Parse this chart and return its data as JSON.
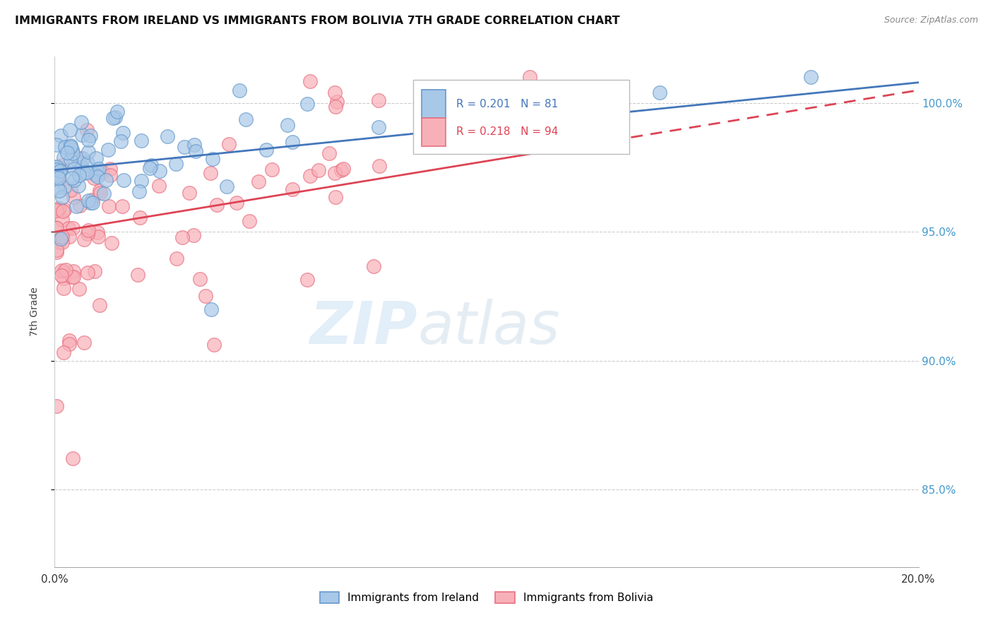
{
  "title": "IMMIGRANTS FROM IRELAND VS IMMIGRANTS FROM BOLIVIA 7TH GRADE CORRELATION CHART",
  "source": "Source: ZipAtlas.com",
  "ylabel": "7th Grade",
  "xmin": 0.0,
  "xmax": 20.0,
  "ymin": 82.0,
  "ymax": 101.8,
  "ireland_color_face": "#a8c8e8",
  "ireland_color_edge": "#6699cc",
  "bolivia_color_face": "#f8b0b8",
  "bolivia_color_edge": "#e87080",
  "ireland_line_color": "#4477bb",
  "bolivia_line_color": "#dd4455",
  "ireland_R": 0.201,
  "ireland_N": 81,
  "bolivia_R": 0.218,
  "bolivia_N": 94,
  "ireland_line_y0": 97.4,
  "ireland_line_y1": 100.8,
  "bolivia_line_y0": 95.0,
  "bolivia_line_y1": 100.5,
  "bolivia_line_solid_xmax": 12.0,
  "y_ticks": [
    85.0,
    90.0,
    95.0,
    100.0
  ],
  "y_tick_labels": [
    "85.0%",
    "90.0%",
    "95.0%",
    "100.0%"
  ]
}
